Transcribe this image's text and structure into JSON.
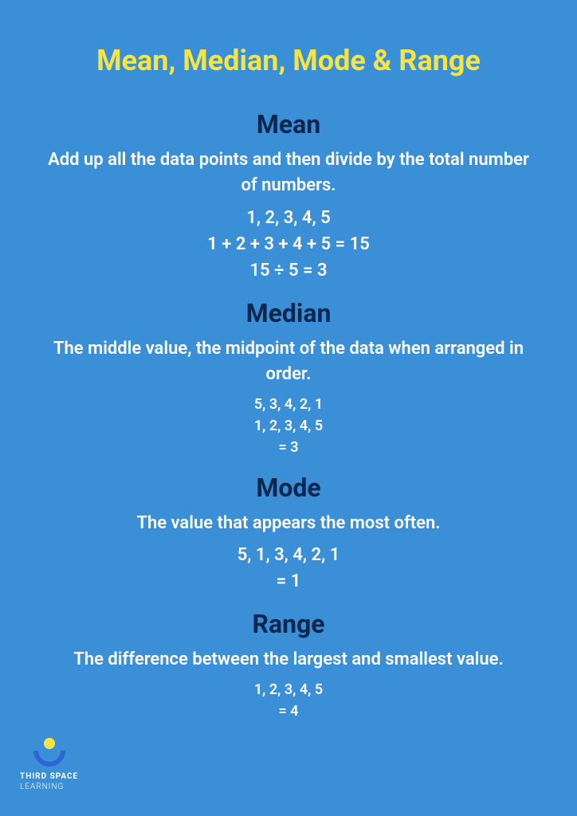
{
  "colors": {
    "background": "#3b8fd6",
    "title": "#f5e544",
    "heading": "#0b2750",
    "text": "#ffffff",
    "logo_dot": "#f5e544",
    "logo_arc": "#2b67d8"
  },
  "main_title": "Mean, Median, Mode & Range",
  "sections": {
    "mean": {
      "title": "Mean",
      "desc": "Add up all the data points and then divide by the total number of numbers.",
      "lines": [
        "1, 2, 3, 4, 5",
        "1 + 2 + 3 + 4 + 5 = 15",
        "15 ÷ 5 = 3"
      ]
    },
    "median": {
      "title": "Median",
      "desc": "The middle value, the midpoint of the data when arranged in order.",
      "lines": [
        "5, 3, 4, 2, 1",
        "1, 2, 3, 4, 5",
        "= 3"
      ]
    },
    "mode": {
      "title": "Mode",
      "desc": "The value that appears the most often.",
      "lines": [
        "5, 1, 3, 4, 2, 1",
        "= 1"
      ]
    },
    "range": {
      "title": "Range",
      "desc": "The difference between the largest and smallest value.",
      "lines": [
        "1, 2, 3, 4, 5",
        "= 4"
      ]
    }
  },
  "logo": {
    "line1": "THIRD SPACE",
    "line2": "LEARNING"
  }
}
